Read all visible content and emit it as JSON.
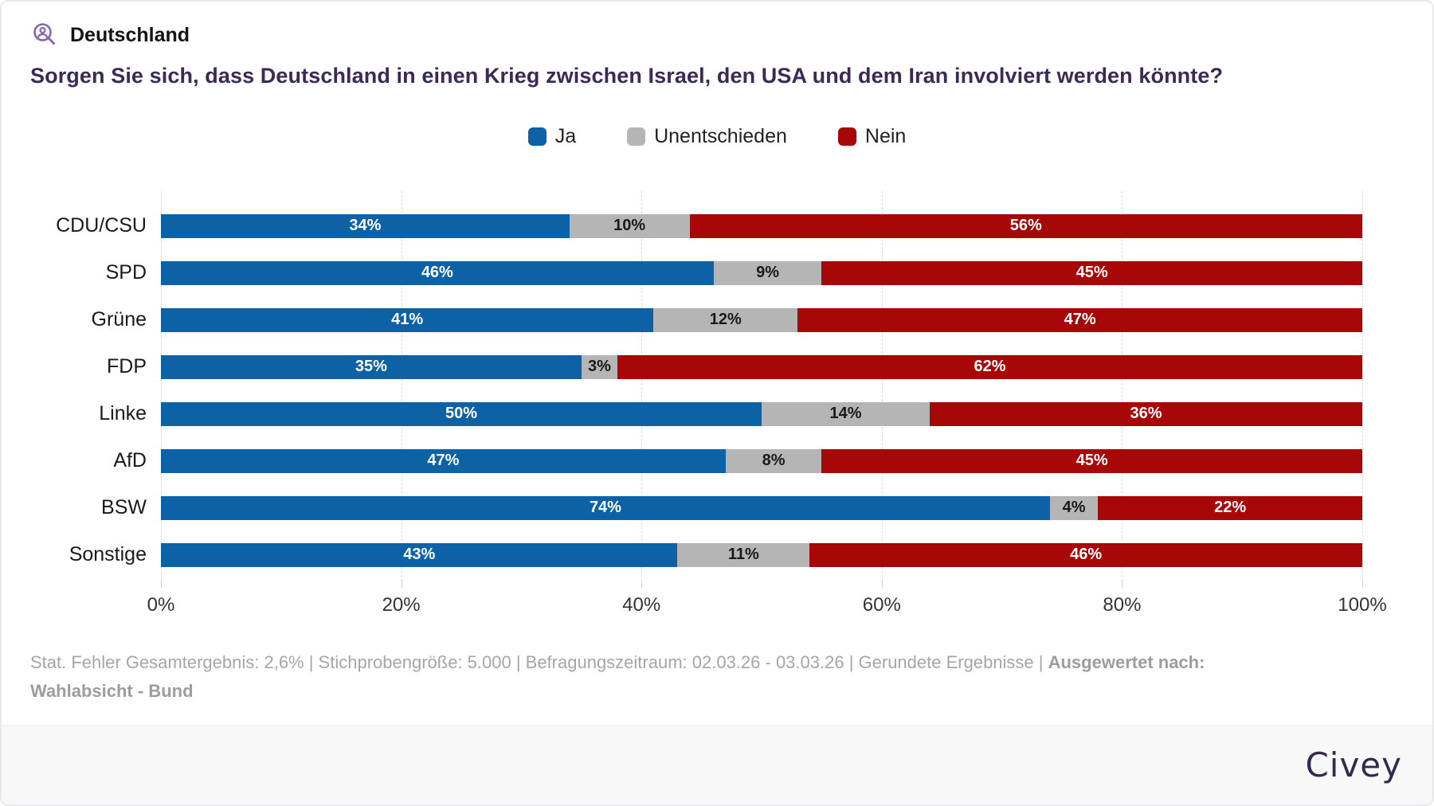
{
  "header": {
    "region": "Deutschland",
    "icon": "audience-magnifier-icon",
    "icon_color": "#8a63ad"
  },
  "title": "Sorgen Sie sich, dass Deutschland in einen Krieg zwischen Israel, den USA und dem Iran involviert werden könnte?",
  "title_color": "#3b2a55",
  "chart_data": {
    "type": "bar",
    "orientation": "horizontal",
    "stacked": true,
    "title": "Sorgen Sie sich, dass Deutschland in einen Krieg zwischen Israel, den USA und dem Iran involviert werden könnte?",
    "categories": [
      "CDU/CSU",
      "SPD",
      "Grüne",
      "FDP",
      "Linke",
      "AfD",
      "BSW",
      "Sonstige"
    ],
    "series": [
      {
        "name": "Ja",
        "key": "ja",
        "color": "#0d62a5",
        "label_color": "#ffffff",
        "values": [
          34,
          46,
          41,
          35,
          50,
          47,
          74,
          43
        ]
      },
      {
        "name": "Unentschieden",
        "key": "unentschieden",
        "color": "#b5b5b5",
        "label_color": "#1a1a1a",
        "values": [
          10,
          9,
          12,
          3,
          14,
          8,
          4,
          11
        ]
      },
      {
        "name": "Nein",
        "key": "nein",
        "color": "#a80708",
        "label_color": "#ffffff",
        "values": [
          56,
          45,
          47,
          62,
          36,
          45,
          22,
          46
        ]
      }
    ],
    "value_suffix": "%",
    "x_ticks": [
      "0%",
      "20%",
      "40%",
      "60%",
      "80%",
      "100%"
    ],
    "x_tick_values": [
      0,
      20,
      40,
      60,
      80,
      100
    ],
    "xlim": [
      0,
      100
    ],
    "xlabel": "",
    "ylabel": "",
    "grid": "dashed-vertical",
    "legend_position": "top-center"
  },
  "footnote": {
    "regular": "Stat. Fehler Gesamtergebnis: 2,6% | Stichprobengröße: 5.000 | Befragungszeitraum: 02.03.26 - 03.03.26 | Gerundete Ergebnisse | ",
    "bold": "Ausgewertet nach: Wahlabsicht - Bund"
  },
  "brand": {
    "logo_text": "Civey",
    "logo_color": "#352a4e",
    "bar_background": "#f8f8f9"
  }
}
